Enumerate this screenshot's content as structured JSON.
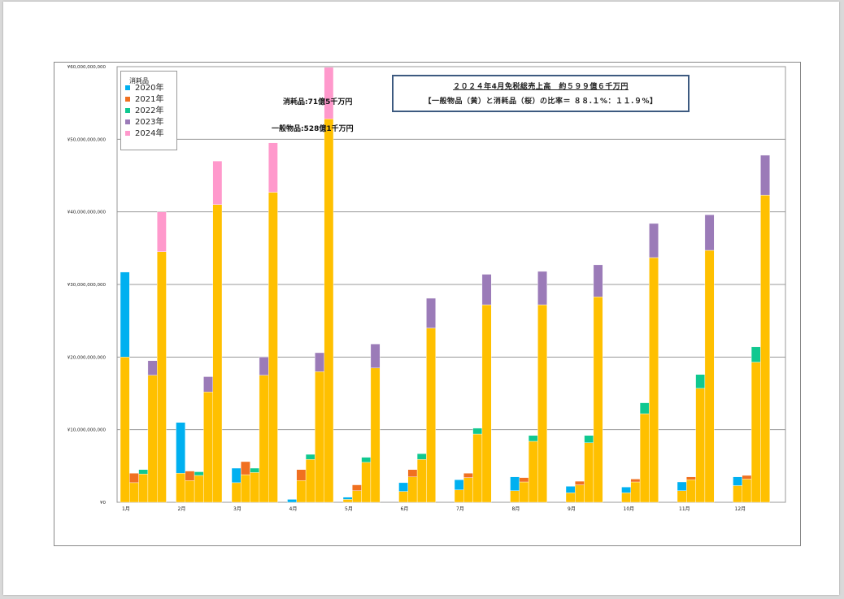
{
  "chart_data": {
    "type": "bar",
    "stacked": true,
    "categories": [
      "1月",
      "2月",
      "3月",
      "4月",
      "5月",
      "6月",
      "7月",
      "8月",
      "9月",
      "10月",
      "11月",
      "12月"
    ],
    "years": [
      "2020年",
      "2021年",
      "2022年",
      "2023年",
      "2024年"
    ],
    "legend_title": "消耗品",
    "legend_placement": "top-left",
    "colors": {
      "general": "#ffc000",
      "2020年": "#00b0f0",
      "2021年": "#f07020",
      "2022年": "#10c890",
      "2023年": "#9b7bb8",
      "2024年": "#ff99cc"
    },
    "ylim": [
      0,
      60000000000
    ],
    "yticks": [
      "¥0",
      "¥10,000,000,000",
      "¥20,000,000,000",
      "¥30,000,000,000",
      "¥40,000,000,000",
      "¥50,000,000,000",
      "¥60,000,000,000"
    ],
    "ytick_values": [
      0,
      10000000000,
      20000000000,
      30000000000,
      40000000000,
      50000000000,
      60000000000
    ],
    "grid": true,
    "general": [
      [
        20000000000,
        2700000000,
        3900000000,
        17500000000,
        34500000000
      ],
      [
        4000000000,
        3000000000,
        3700000000,
        15200000000,
        41000000000
      ],
      [
        2700000000,
        3800000000,
        4100000000,
        17500000000,
        42700000000
      ],
      [
        0,
        3000000000,
        5900000000,
        18000000000,
        52800000000
      ],
      [
        400000000,
        1600000000,
        5500000000,
        18500000000,
        null
      ],
      [
        1500000000,
        3500000000,
        5900000000,
        24000000000,
        null
      ],
      [
        1700000000,
        3400000000,
        9400000000,
        27200000000,
        null
      ],
      [
        1600000000,
        2800000000,
        8400000000,
        27200000000,
        null
      ],
      [
        1300000000,
        2400000000,
        8200000000,
        28300000000,
        null
      ],
      [
        1300000000,
        2800000000,
        12200000000,
        33700000000,
        null
      ],
      [
        1600000000,
        3100000000,
        15700000000,
        34700000000,
        null
      ],
      [
        2300000000,
        3200000000,
        19300000000,
        42300000000,
        null
      ]
    ],
    "consumables": [
      [
        11700000000,
        1300000000,
        600000000,
        2000000000,
        5500000000
      ],
      [
        7000000000,
        1300000000,
        500000000,
        2100000000,
        6000000000
      ],
      [
        2000000000,
        1800000000,
        600000000,
        2500000000,
        6800000000
      ],
      [
        400000000,
        1500000000,
        700000000,
        2600000000,
        7100000000
      ],
      [
        300000000,
        800000000,
        700000000,
        3300000000,
        null
      ],
      [
        1200000000,
        1000000000,
        800000000,
        4100000000,
        null
      ],
      [
        1400000000,
        600000000,
        800000000,
        4200000000,
        null
      ],
      [
        1900000000,
        600000000,
        800000000,
        4600000000,
        null
      ],
      [
        900000000,
        500000000,
        1000000000,
        4400000000,
        null
      ],
      [
        800000000,
        400000000,
        1500000000,
        4700000000,
        null
      ],
      [
        1200000000,
        400000000,
        1900000000,
        4900000000,
        null
      ],
      [
        1200000000,
        500000000,
        2100000000,
        5500000000,
        null
      ]
    ],
    "annotations": {
      "consumables_label": "消耗品:71億5千万円",
      "general_label": "一般物品:528億1千万円"
    }
  },
  "infobox": {
    "line1": "２０２４年4月免税総売上高　約５９９億６千万円",
    "line2": "【一般物品（黄）と消耗品（桜）の比率＝ ８８.１%：１１.９%】"
  }
}
